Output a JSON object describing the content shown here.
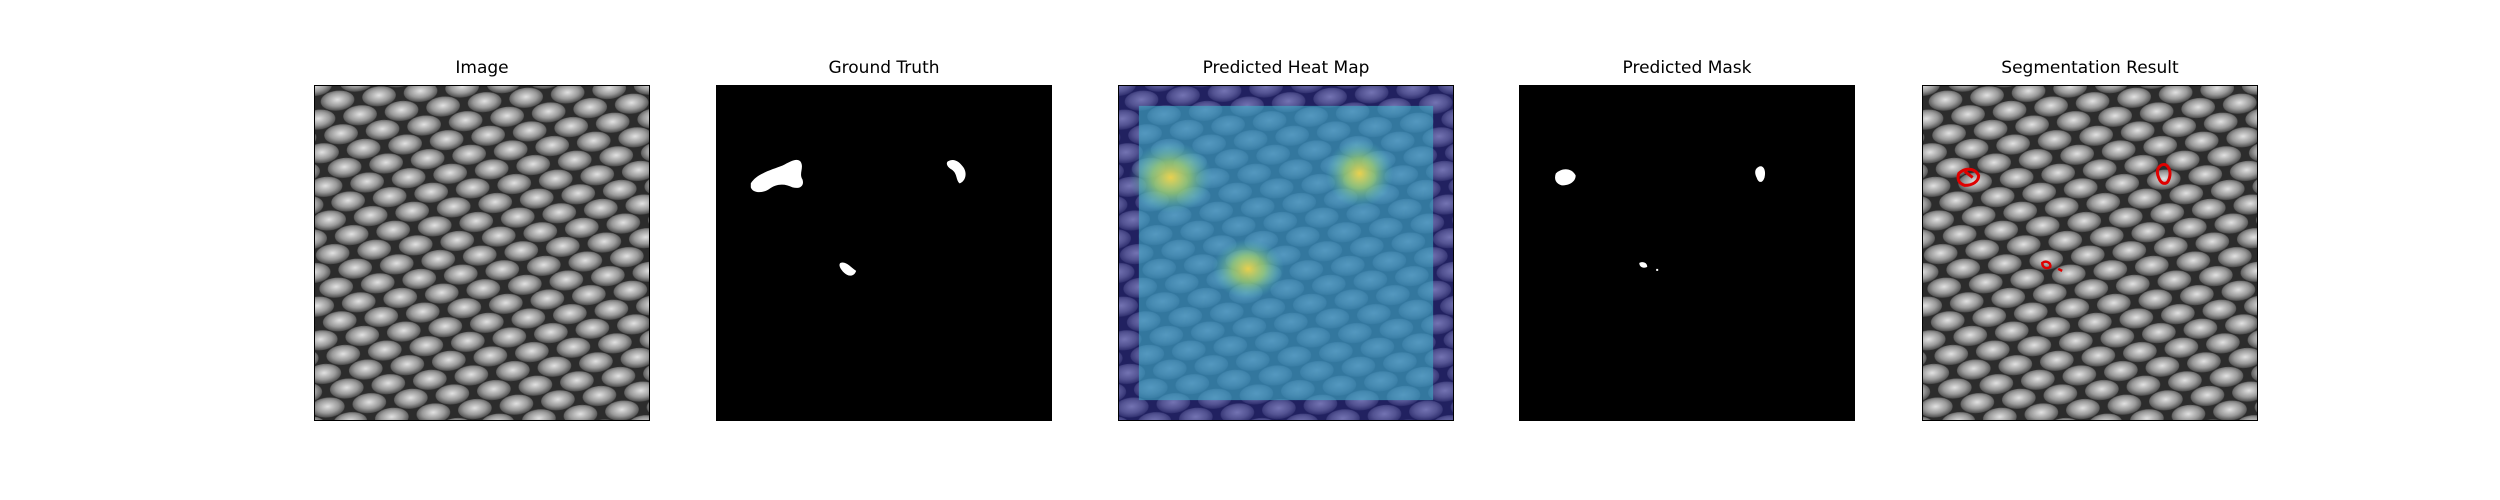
{
  "figure": {
    "panels": [
      {
        "title": "Image"
      },
      {
        "title": "Ground Truth"
      },
      {
        "title": "Predicted Heat Map"
      },
      {
        "title": "Predicted Mask"
      },
      {
        "title": "Segmentation Result"
      }
    ]
  },
  "colors": {
    "background": "#ffffff",
    "mask_black": "#000000",
    "mask_white": "#ffffff",
    "contour_red": "#e00000",
    "heat_low": "#1a1a8c",
    "heat_mid": "#3aa9c4",
    "heat_high": "#e8d14a"
  }
}
